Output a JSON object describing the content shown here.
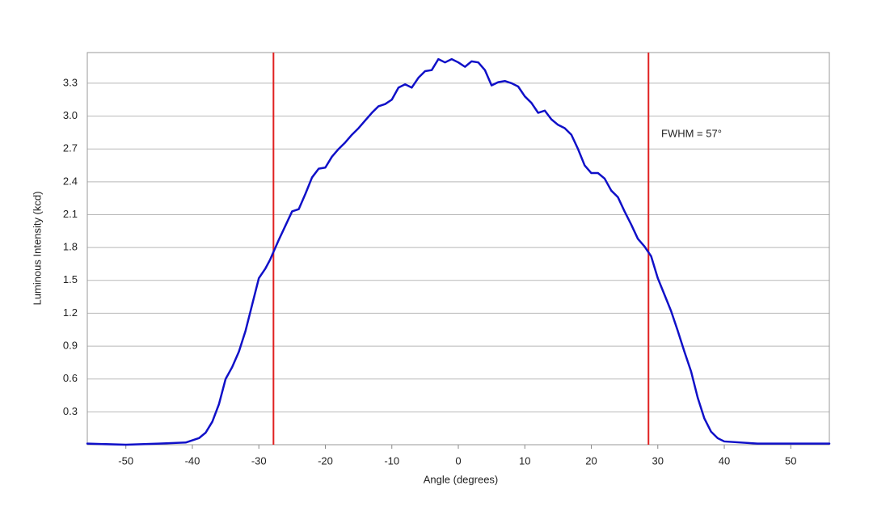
{
  "chart_data": {
    "type": "line",
    "xlabel": "Angle (degrees)",
    "ylabel": "Luminous Intensity (kcd)",
    "annotation": "FWHM = 57°",
    "xlim": [
      -55.8,
      55.8
    ],
    "ylim": [
      0,
      3.58
    ],
    "xticks": [
      -50,
      -40,
      -30,
      -20,
      -10,
      0,
      10,
      20,
      30,
      40,
      50
    ],
    "yticks": [
      0.3,
      0.6,
      0.9,
      1.2,
      1.5,
      1.8,
      2.1,
      2.4,
      2.7,
      {
        "value": 3,
        "label": "3.0"
      },
      3.3
    ],
    "grid": true,
    "vlines": [
      -27.8,
      28.6
    ],
    "vline_color": "#e02020",
    "series": [
      {
        "name": "Luminous Intensity",
        "color": "#1010c8",
        "x": [
          -55.8,
          -50,
          -45,
          -41,
          -39,
          -38,
          -37,
          -36,
          -35,
          -34,
          -33,
          -32,
          -31,
          -30,
          -29,
          -28.3,
          -27.8,
          -27,
          -26,
          -25,
          -24,
          -23,
          -22,
          -21,
          -20,
          -19,
          -18,
          -17,
          -16,
          -15,
          -14,
          -13,
          -12,
          -11,
          -10,
          -9,
          -8,
          -7,
          -6,
          -5,
          -4,
          -3,
          -2,
          -1,
          0,
          1,
          2,
          3,
          4,
          5,
          6,
          7,
          8,
          9,
          10,
          11,
          12,
          13,
          14,
          15,
          16,
          17,
          18,
          19,
          20,
          21,
          22,
          23,
          24,
          25,
          26,
          27,
          28,
          29,
          30,
          31,
          32,
          33,
          34,
          35,
          36,
          37,
          38,
          39,
          40,
          45,
          50,
          55.8
        ],
        "values": [
          0.01,
          0.0,
          0.01,
          0.02,
          0.06,
          0.11,
          0.21,
          0.37,
          0.6,
          0.71,
          0.85,
          1.04,
          1.28,
          1.52,
          1.61,
          1.69,
          1.76,
          1.87,
          2.0,
          2.13,
          2.15,
          2.29,
          2.44,
          2.52,
          2.53,
          2.63,
          2.7,
          2.76,
          2.83,
          2.89,
          2.96,
          3.03,
          3.09,
          3.11,
          3.15,
          3.26,
          3.29,
          3.26,
          3.35,
          3.41,
          3.42,
          3.52,
          3.49,
          3.52,
          3.49,
          3.45,
          3.5,
          3.49,
          3.42,
          3.28,
          3.31,
          3.32,
          3.3,
          3.27,
          3.18,
          3.12,
          3.03,
          3.05,
          2.97,
          2.92,
          2.89,
          2.83,
          2.7,
          2.55,
          2.48,
          2.48,
          2.43,
          2.32,
          2.26,
          2.13,
          2.01,
          1.88,
          1.81,
          1.72,
          1.52,
          1.37,
          1.22,
          1.04,
          0.85,
          0.67,
          0.43,
          0.24,
          0.12,
          0.06,
          0.03,
          0.01,
          0.01,
          0.01
        ]
      }
    ]
  }
}
